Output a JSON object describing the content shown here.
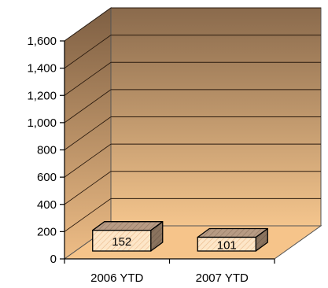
{
  "chart_data": {
    "type": "bar",
    "categories": [
      "2006 YTD",
      "2007 YTD"
    ],
    "values": [
      152,
      101
    ],
    "data_labels": [
      "152",
      "101"
    ],
    "ylim": [
      0,
      1600
    ],
    "ytick_values": [
      0,
      200,
      400,
      600,
      800,
      1000,
      1200,
      1400,
      1600
    ],
    "ytick_labels": [
      "0",
      "200",
      "400",
      "600",
      "800",
      "1,000",
      "1,200",
      "1,400",
      "1,600"
    ],
    "grid": true,
    "three_d": true,
    "colors": {
      "wall_top": "#8a6a4c",
      "wall_bottom": "#f4c58d",
      "floor": "#f6c48a",
      "bar_front": "#fde6c8",
      "bar_top": "#b79b84",
      "bar_side": "#8a735e",
      "grid": "#2a1a0e",
      "axis": "#000000"
    }
  }
}
